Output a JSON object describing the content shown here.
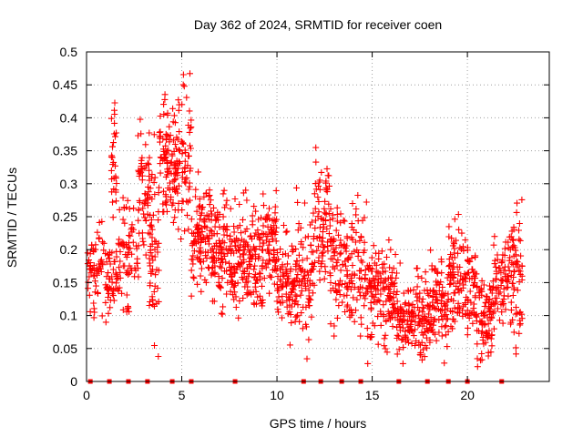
{
  "chart_data": {
    "type": "scatter",
    "title": "Day 362 of 2024, SRMTID for receiver coen",
    "xlabel": "GPS time / hours",
    "ylabel": "SRMTID / TECUs",
    "xlim": [
      0,
      24.3
    ],
    "ylim": [
      0,
      0.5
    ],
    "x_ticks": [
      0,
      5,
      10,
      15,
      20
    ],
    "x_tick_labels": [
      "0",
      "5",
      "10",
      "15",
      "20"
    ],
    "y_ticks": [
      0,
      0.05,
      0.1,
      0.15,
      0.2,
      0.25,
      0.3,
      0.35,
      0.4,
      0.45,
      0.5
    ],
    "y_tick_labels": [
      "0",
      "0.05",
      "0.1",
      "0.15",
      "0.2",
      "0.25",
      "0.3",
      "0.35",
      "0.4",
      "0.45",
      "0.5"
    ],
    "grid": true,
    "marker": "+",
    "color": "#ff0000",
    "zero_markers_x": [
      0.2,
      1.2,
      2.2,
      3.2,
      4.5,
      5.5,
      7.8,
      11.4,
      12.3,
      13.4,
      14.4,
      16.4,
      17.9,
      19.0,
      20.0,
      21.8
    ],
    "segments": [
      {
        "start": 0.0,
        "end": 0.9,
        "mean": 0.17,
        "std": 0.03,
        "n": 60
      },
      {
        "start": 0.9,
        "end": 1.8,
        "mean": 0.17,
        "std": 0.035,
        "n": 60
      },
      {
        "start": 1.3,
        "end": 1.6,
        "mean": 0.34,
        "std": 0.04,
        "n": 30
      },
      {
        "start": 1.8,
        "end": 2.7,
        "mean": 0.2,
        "std": 0.04,
        "n": 60
      },
      {
        "start": 2.7,
        "end": 3.3,
        "mean": 0.28,
        "std": 0.05,
        "n": 60
      },
      {
        "start": 3.3,
        "end": 3.8,
        "mean": 0.2,
        "std": 0.07,
        "n": 60
      },
      {
        "start": 3.8,
        "end": 4.6,
        "mean": 0.33,
        "std": 0.05,
        "n": 80
      },
      {
        "start": 4.6,
        "end": 5.5,
        "mean": 0.32,
        "std": 0.06,
        "n": 90
      },
      {
        "start": 5.5,
        "end": 6.5,
        "mean": 0.22,
        "std": 0.035,
        "n": 100
      },
      {
        "start": 6.5,
        "end": 7.5,
        "mean": 0.2,
        "std": 0.04,
        "n": 100
      },
      {
        "start": 7.5,
        "end": 8.4,
        "mean": 0.19,
        "std": 0.04,
        "n": 90
      },
      {
        "start": 8.4,
        "end": 9.3,
        "mean": 0.18,
        "std": 0.04,
        "n": 90
      },
      {
        "start": 9.3,
        "end": 10.0,
        "mean": 0.22,
        "std": 0.04,
        "n": 70
      },
      {
        "start": 10.0,
        "end": 11.0,
        "mean": 0.15,
        "std": 0.035,
        "n": 90
      },
      {
        "start": 11.0,
        "end": 11.9,
        "mean": 0.16,
        "std": 0.045,
        "n": 80
      },
      {
        "start": 11.9,
        "end": 12.8,
        "mean": 0.24,
        "std": 0.05,
        "n": 80
      },
      {
        "start": 12.8,
        "end": 13.7,
        "mean": 0.17,
        "std": 0.045,
        "n": 80
      },
      {
        "start": 13.7,
        "end": 14.6,
        "mean": 0.17,
        "std": 0.04,
        "n": 70
      },
      {
        "start": 14.6,
        "end": 15.4,
        "mean": 0.14,
        "std": 0.04,
        "n": 70
      },
      {
        "start": 15.4,
        "end": 16.3,
        "mean": 0.13,
        "std": 0.04,
        "n": 80
      },
      {
        "start": 16.3,
        "end": 17.2,
        "mean": 0.09,
        "std": 0.025,
        "n": 80
      },
      {
        "start": 17.2,
        "end": 18.1,
        "mean": 0.1,
        "std": 0.03,
        "n": 80
      },
      {
        "start": 18.1,
        "end": 19.0,
        "mean": 0.12,
        "std": 0.03,
        "n": 80
      },
      {
        "start": 19.0,
        "end": 19.7,
        "mean": 0.16,
        "std": 0.04,
        "n": 70
      },
      {
        "start": 19.7,
        "end": 20.5,
        "mean": 0.14,
        "std": 0.035,
        "n": 70
      },
      {
        "start": 20.5,
        "end": 21.3,
        "mean": 0.1,
        "std": 0.03,
        "n": 80
      },
      {
        "start": 21.3,
        "end": 22.2,
        "mean": 0.15,
        "std": 0.035,
        "n": 70
      },
      {
        "start": 22.2,
        "end": 22.9,
        "mean": 0.16,
        "std": 0.05,
        "n": 70
      }
    ]
  }
}
